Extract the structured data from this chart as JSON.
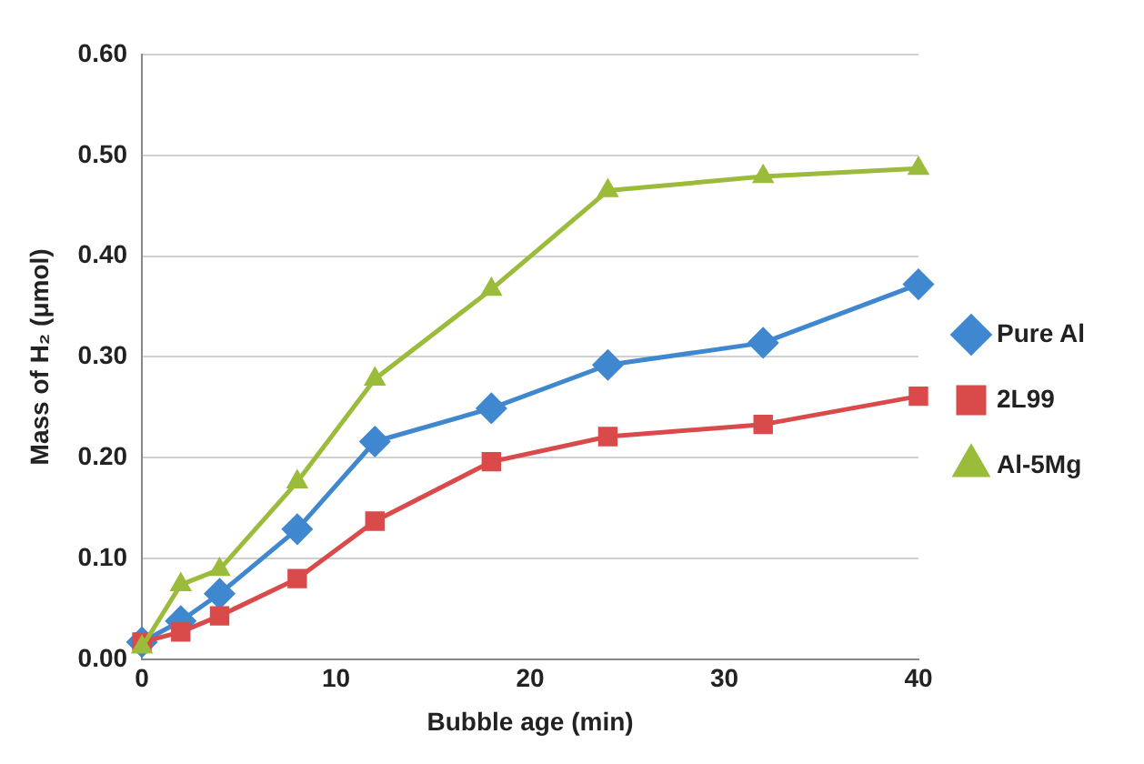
{
  "chart_data": {
    "type": "line",
    "xlabel": "Bubble age (min)",
    "ylabel": "Mass of H₂ (μmol)",
    "x": [
      0,
      2,
      4,
      8,
      12,
      18,
      24,
      32,
      40
    ],
    "xlim": [
      0,
      40
    ],
    "xticks": [
      0,
      10,
      20,
      30,
      40
    ],
    "ylim": [
      0,
      0.6
    ],
    "yticks": [
      {
        "value": 0,
        "label": "0.00"
      },
      {
        "value": 0.1,
        "label": "0.10"
      },
      {
        "value": 0.2,
        "label": "0.20"
      },
      {
        "value": 0.3,
        "label": "0.30"
      },
      {
        "value": 0.4,
        "label": "0.40"
      },
      {
        "value": 0.5,
        "label": "0.50"
      },
      {
        "value": 0.6,
        "label": "0.60"
      }
    ],
    "grid": "y",
    "legend": "right",
    "line_style": "solid",
    "series": [
      {
        "name": "Pure Al",
        "color": "#3f88cf",
        "marker": "diamond",
        "values": [
          0.017,
          0.038,
          0.065,
          0.129,
          0.216,
          0.249,
          0.292,
          0.314,
          0.372
        ]
      },
      {
        "name": "2L99",
        "color": "#d94a4a",
        "marker": "square",
        "values": [
          0.017,
          0.027,
          0.043,
          0.08,
          0.137,
          0.196,
          0.221,
          0.233,
          0.261
        ]
      },
      {
        "name": "Al-5Mg",
        "color": "#9bbb3b",
        "marker": "triangle",
        "values": [
          0.012,
          0.074,
          0.089,
          0.176,
          0.278,
          0.367,
          0.465,
          0.479,
          0.487
        ]
      }
    ]
  }
}
